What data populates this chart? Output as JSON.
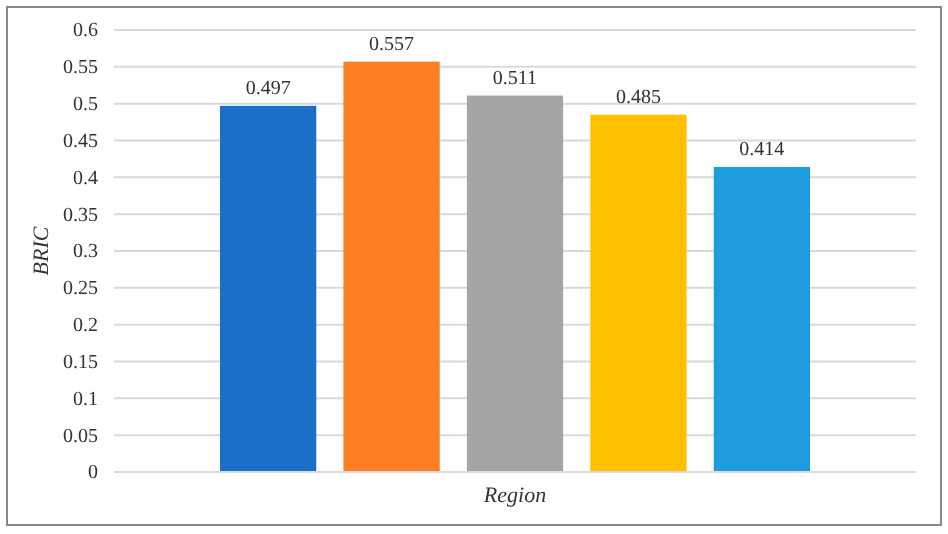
{
  "chart_data": {
    "type": "bar",
    "xlabel": "Region",
    "ylabel": "BRIC",
    "categories": [
      null,
      null,
      null,
      null,
      null
    ],
    "values": [
      0.497,
      0.557,
      0.511,
      0.485,
      0.414
    ],
    "colors": [
      "#1a70c8",
      "#fd7f23",
      "#a5a5a5",
      "#ffc000",
      "#1e9bdc"
    ],
    "data_labels": true,
    "ylim": [
      0,
      0.6
    ],
    "yticks": [
      0,
      0.05,
      0.1,
      0.15,
      0.2,
      0.25,
      0.3,
      0.35,
      0.4,
      0.45,
      0.5,
      0.55,
      0.6
    ],
    "grid": "y"
  }
}
